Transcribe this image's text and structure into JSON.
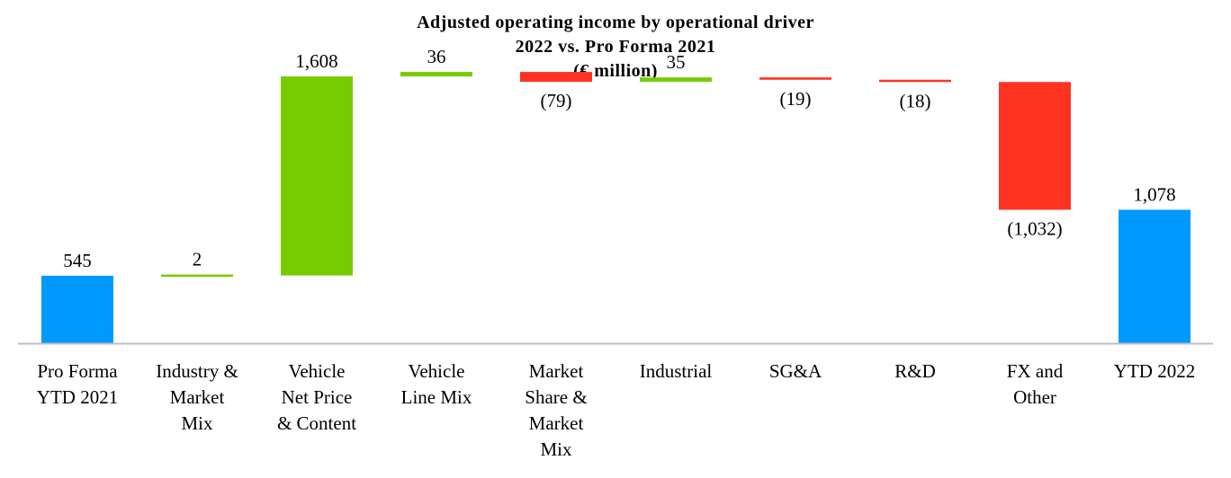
{
  "chart_data": {
    "type": "bar",
    "subtype": "waterfall",
    "title": "Adjusted operating income by operational driver",
    "subtitle_lines": [
      "2022 vs. Pro Forma 2021",
      "(€ million)"
    ],
    "categories": [
      [
        "Pro Forma",
        "YTD 2021"
      ],
      [
        "Industry &",
        "Market",
        "Mix"
      ],
      [
        "Vehicle",
        "Net Price",
        "& Content"
      ],
      [
        "Vehicle",
        "Line Mix"
      ],
      [
        "Market",
        "Share &",
        "Market",
        "Mix"
      ],
      [
        "Industrial"
      ],
      [
        "SG&A"
      ],
      [
        "R&D"
      ],
      [
        "FX and",
        "Other"
      ],
      [
        "YTD 2022"
      ]
    ],
    "values": [
      545,
      2,
      1608,
      36,
      -79,
      35,
      -19,
      -18,
      -1032,
      1078
    ],
    "value_labels": [
      "545",
      "2",
      "1,608",
      "36",
      "(79)",
      "35",
      "(19)",
      "(18)",
      "(1,032)",
      "1,078"
    ],
    "bar_kinds": [
      "total",
      "delta",
      "delta",
      "delta",
      "delta",
      "delta",
      "delta",
      "delta",
      "delta",
      "total"
    ],
    "colors": {
      "total": "#0099FF",
      "increase": "#77CC00",
      "decrease": "#FF3322",
      "axis": "#BFBFBF"
    },
    "ylim": [
      0,
      2300
    ],
    "grid": false,
    "legend": "none"
  }
}
